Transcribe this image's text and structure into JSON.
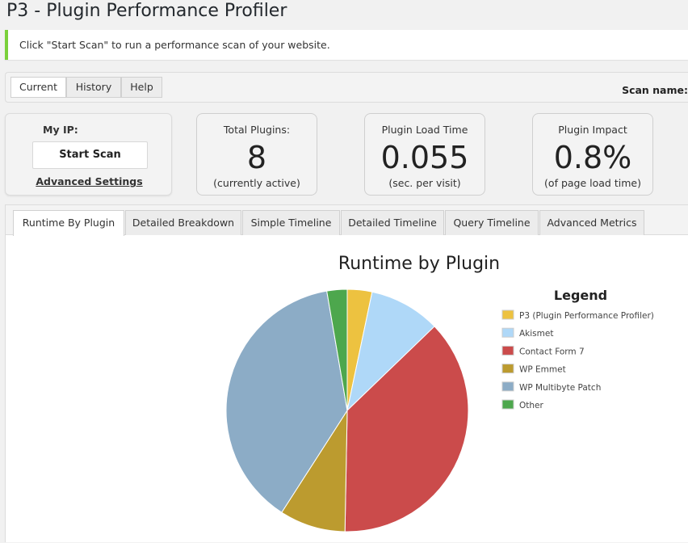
{
  "page": {
    "title": "P3 - Plugin Performance Profiler",
    "notice": "Click \"Start Scan\" to run a performance scan of your website."
  },
  "top_tabs": [
    {
      "label": "Current",
      "active": true
    },
    {
      "label": "History",
      "active": false
    },
    {
      "label": "Help",
      "active": false
    }
  ],
  "scan_name_label": "Scan name:",
  "ip_panel": {
    "my_ip_label": "My IP:",
    "start_button": "Start Scan",
    "advanced_link": "Advanced Settings"
  },
  "stats": [
    {
      "label": "Total Plugins:",
      "value": "8",
      "sub": "(currently active)"
    },
    {
      "label": "Plugin Load Time",
      "value": "0.055",
      "sub": "(sec. per visit)"
    },
    {
      "label": "Plugin Impact",
      "value": "0.8%",
      "sub": "(of page load time)"
    }
  ],
  "content_tabs": [
    {
      "label": "Runtime By Plugin",
      "active": true
    },
    {
      "label": "Detailed Breakdown",
      "active": false
    },
    {
      "label": "Simple Timeline",
      "active": false
    },
    {
      "label": "Detailed Timeline",
      "active": false
    },
    {
      "label": "Query Timeline",
      "active": false
    },
    {
      "label": "Advanced Metrics",
      "active": false
    }
  ],
  "chart_data": {
    "type": "pie",
    "title": "Runtime by Plugin",
    "legend_title": "Legend",
    "legend_position": "right",
    "series": [
      {
        "name": "P3 (Plugin Performance Profiler)",
        "value": 3.3,
        "color": "#edc240"
      },
      {
        "name": "Akismet",
        "value": 9.5,
        "color": "#afd8f8"
      },
      {
        "name": "Contact Form 7",
        "value": 37.5,
        "color": "#cb4b4b"
      },
      {
        "name": "WP Emmet",
        "value": 8.8,
        "color": "#bc9b2f"
      },
      {
        "name": "WP Multibyte Patch",
        "value": 38.2,
        "color": "#8cacc6"
      },
      {
        "name": "Other",
        "value": 2.7,
        "color": "#4da74d"
      }
    ]
  }
}
